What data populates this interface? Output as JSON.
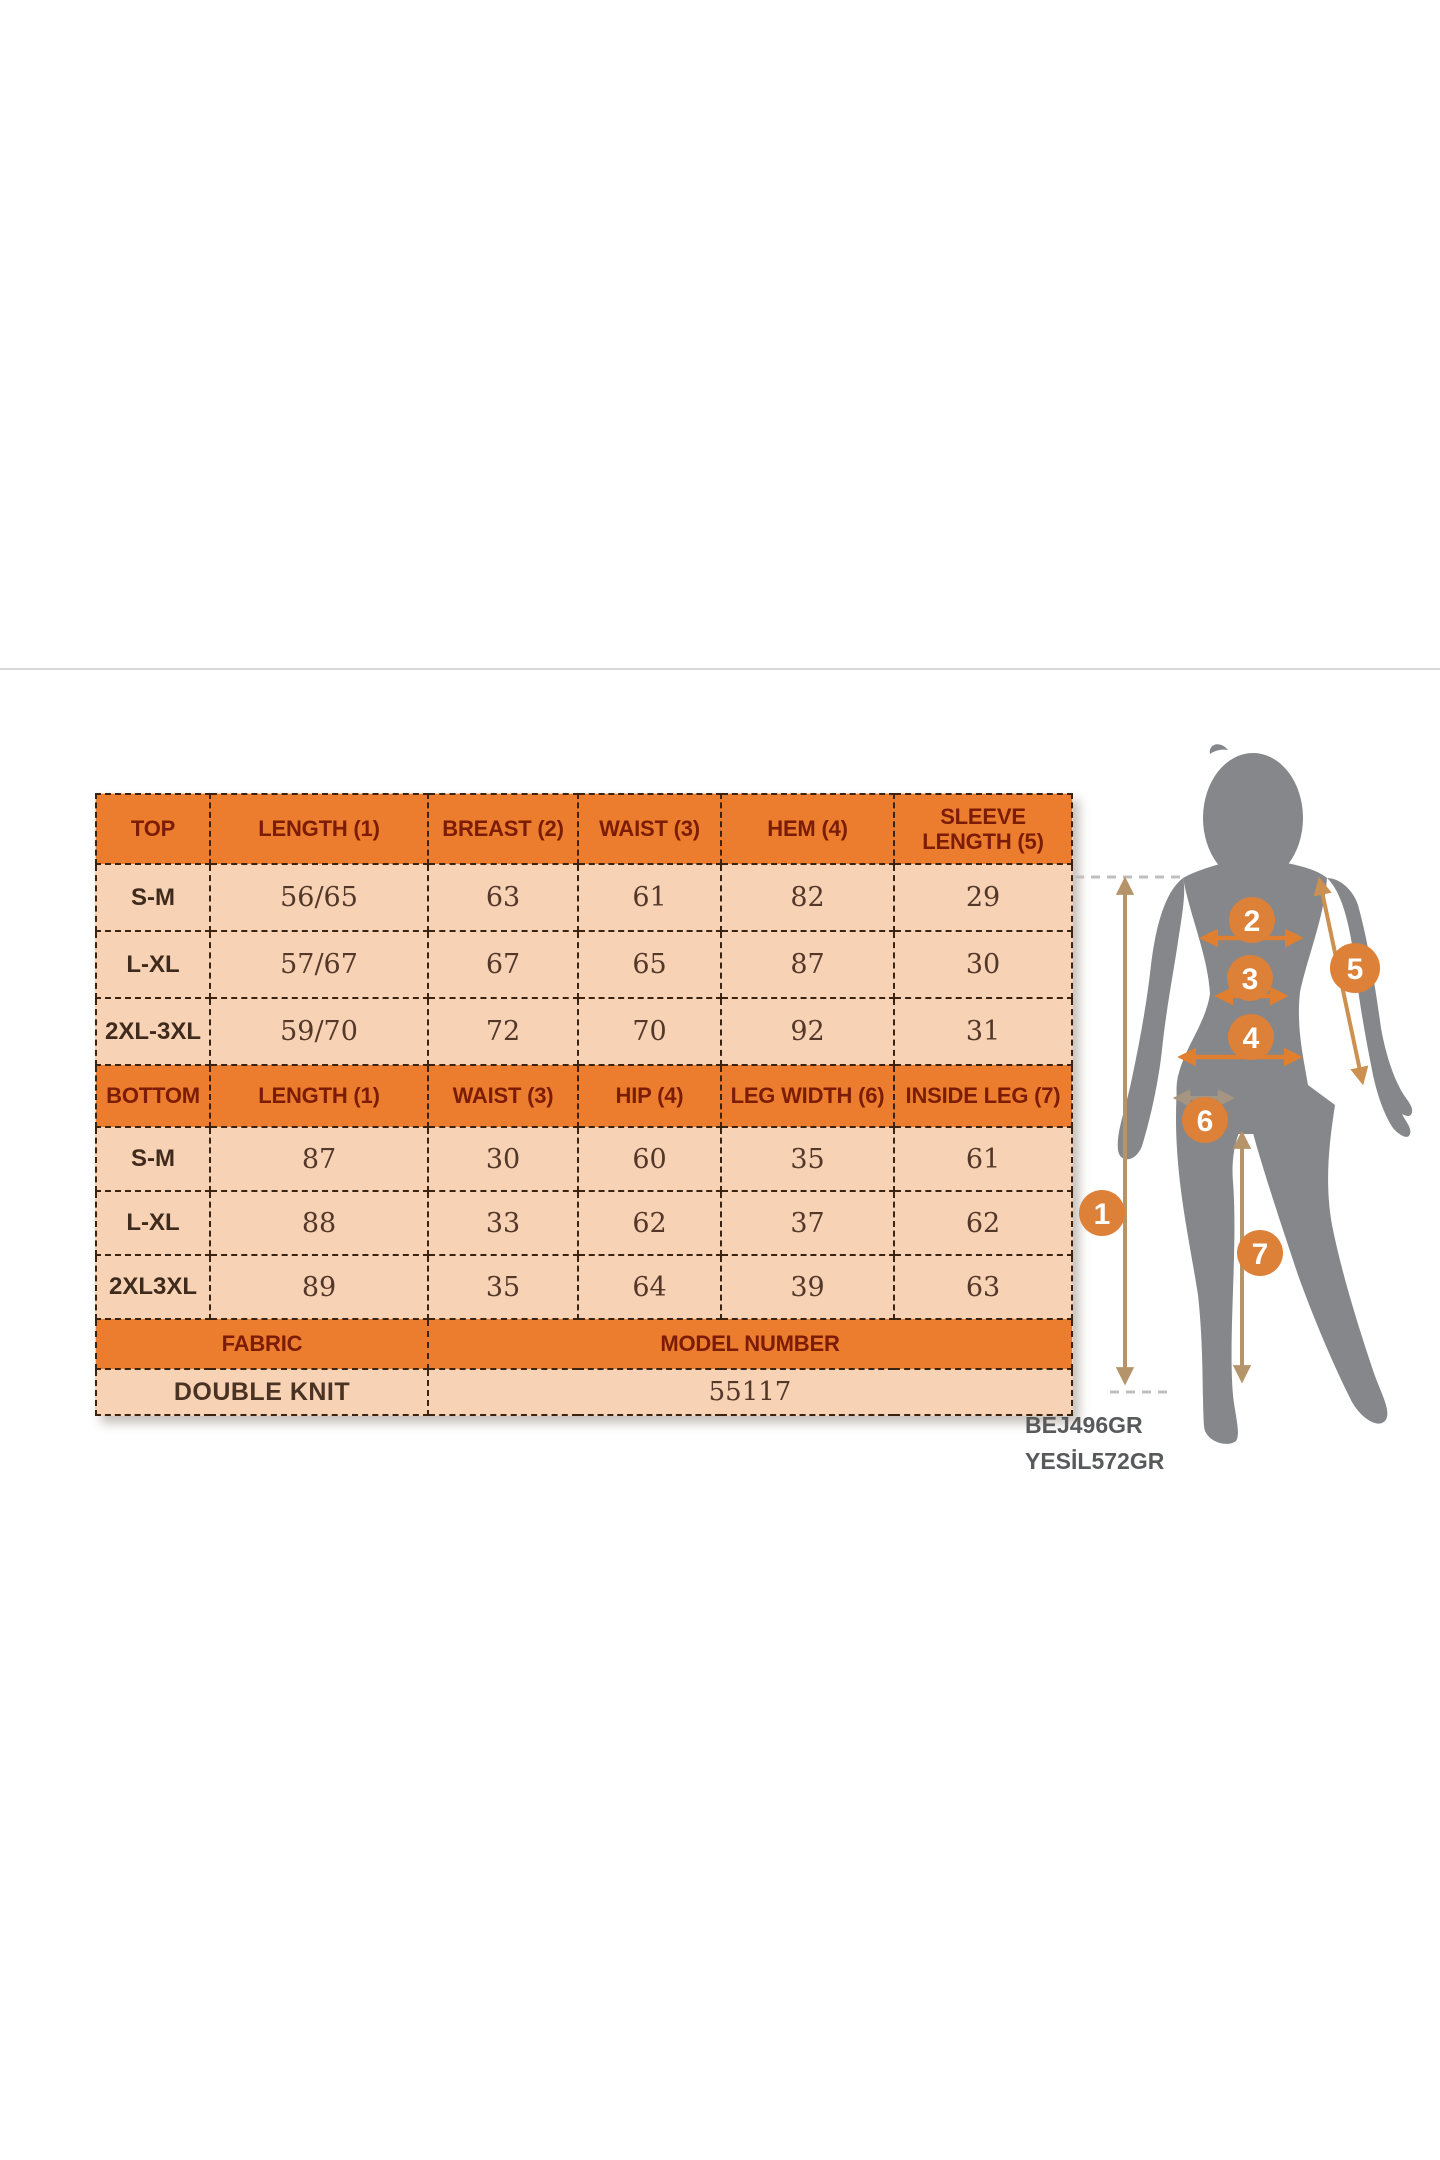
{
  "size_chart": {
    "top_section": {
      "headers": [
        "TOP",
        "LENGTH (1)",
        "BREAST (2)",
        "WAIST (3)",
        "HEM (4)",
        "SLEEVE LENGTH (5)"
      ],
      "rows": [
        {
          "label": "S-M",
          "values": [
            "56/65",
            "63",
            "61",
            "82",
            "29"
          ]
        },
        {
          "label": "L-XL",
          "values": [
            "57/67",
            "67",
            "65",
            "87",
            "30"
          ]
        },
        {
          "label": "2XL-3XL",
          "values": [
            "59/70",
            "72",
            "70",
            "92",
            "31"
          ]
        }
      ]
    },
    "bottom_section": {
      "headers": [
        "BOTTOM",
        "LENGTH (1)",
        "WAIST (3)",
        "HIP (4)",
        "LEG WIDTH (6)",
        "INSIDE LEG (7)"
      ],
      "rows": [
        {
          "label": "S-M",
          "values": [
            "87",
            "30",
            "60",
            "35",
            "61"
          ]
        },
        {
          "label": "L-XL",
          "values": [
            "88",
            "33",
            "62",
            "37",
            "62"
          ]
        },
        {
          "label": "2XL3XL",
          "values": [
            "89",
            "35",
            "64",
            "39",
            "63"
          ]
        }
      ]
    },
    "footer": {
      "fabric_label": "FABRIC",
      "fabric_value": "DOUBLE KNIT",
      "model_label": "MODEL NUMBER",
      "model_value": "55117"
    },
    "colors": {
      "header_bg": "#ED7D2E",
      "row_bg": "#F8D2B5",
      "border": "#3A2310",
      "header_text": "#7B1C06",
      "value_text": "#53382A",
      "label_text": "#3E2B1D"
    }
  },
  "product_codes": [
    "BEJ496GR",
    "YESİL572GR"
  ],
  "figure": {
    "badge_labels": [
      "1",
      "2",
      "3",
      "4",
      "5",
      "6",
      "7"
    ],
    "colors": {
      "silhouette": "#85878A",
      "badge": "#DD8038",
      "arrow_orange": "#DF7F2F",
      "arrow_tan": "#B6946A",
      "arrow_sleeve": "#CC9150",
      "arrow_gray": "#A59582"
    }
  }
}
